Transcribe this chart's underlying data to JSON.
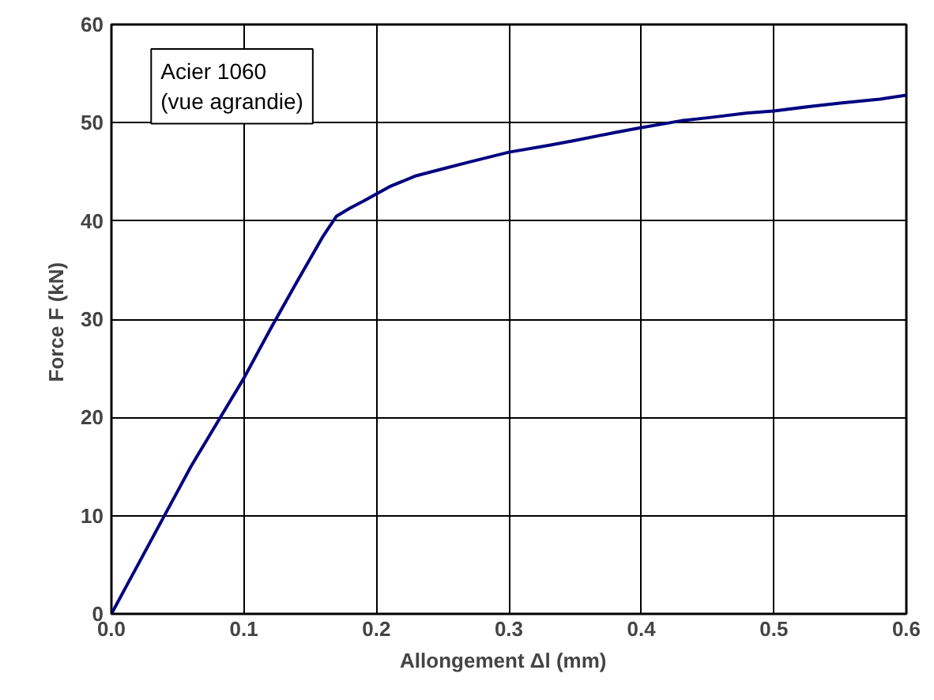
{
  "chart_data": {
    "type": "line",
    "xlabel": "Allongement Δl   (mm)",
    "ylabel": "Force F  (kN)",
    "annotations": [
      "Acier 1060\n(vue agrandie)"
    ],
    "x": [
      0,
      0.01,
      0.02,
      0.04,
      0.05,
      0.06,
      0.08,
      0.1,
      0.12,
      0.14,
      0.16,
      0.17,
      0.18,
      0.19,
      0.21,
      0.23,
      0.25,
      0.27,
      0.3,
      0.33,
      0.35,
      0.38,
      0.4,
      0.43,
      0.45,
      0.48,
      0.5,
      0.53,
      0.55,
      0.58,
      0.6
    ],
    "series": [
      {
        "color": "#000080",
        "values": [
          0,
          2.5,
          5,
          10,
          12.5,
          15,
          19.5,
          24,
          29,
          33.8,
          38.5,
          40.5,
          41.3,
          42,
          43.5,
          44.6,
          45.3,
          46,
          47,
          47.7,
          48.2,
          49,
          49.5,
          50.2,
          50.5,
          51,
          51.2,
          51.7,
          52,
          52.4,
          52.8
        ]
      }
    ],
    "xlim": [
      0,
      0.6
    ],
    "ylim": [
      0,
      60
    ],
    "xticks": [
      {
        "value": 0,
        "label": "0.0"
      },
      {
        "value": 0.1,
        "label": "0.1"
      },
      {
        "value": 0.2,
        "label": "0.2"
      },
      {
        "value": 0.3,
        "label": "0.3"
      },
      {
        "value": 0.4,
        "label": "0.4"
      },
      {
        "value": 0.5,
        "label": "0.5"
      },
      {
        "value": 0.6,
        "label": "0.6"
      }
    ],
    "yticks": [
      0,
      10,
      20,
      30,
      40,
      50,
      60
    ],
    "grid": true,
    "marker": "none",
    "line_style": "solid"
  }
}
